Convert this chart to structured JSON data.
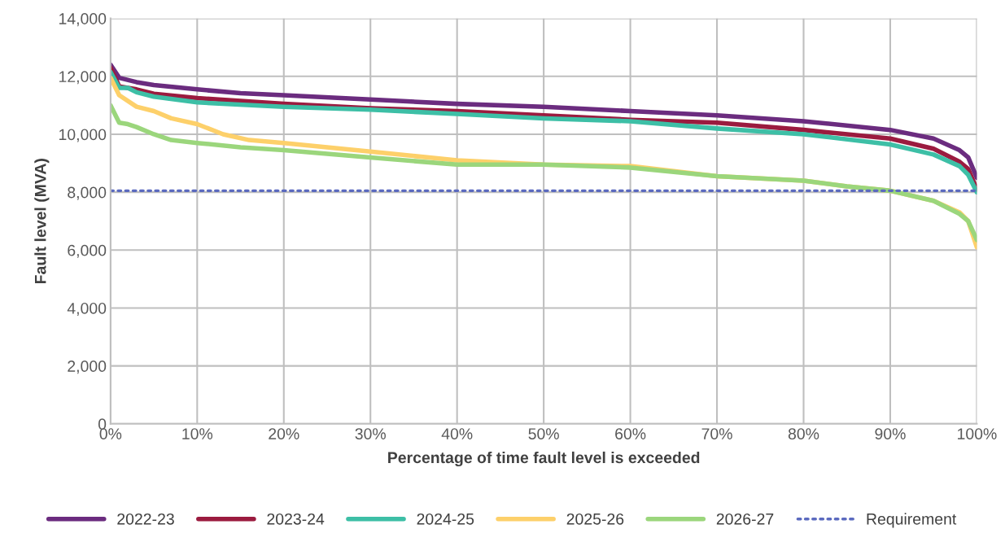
{
  "chart_data": {
    "type": "line",
    "xlabel": "Percentage of time fault level is exceeded",
    "ylabel": "Fault level (MVA)",
    "xlim": [
      0,
      100
    ],
    "xticks": [
      {
        "value": 0,
        "label": "0%"
      },
      {
        "value": 10,
        "label": "10%"
      },
      {
        "value": 20,
        "label": "20%"
      },
      {
        "value": 30,
        "label": "30%"
      },
      {
        "value": 40,
        "label": "40%"
      },
      {
        "value": 50,
        "label": "50%"
      },
      {
        "value": 60,
        "label": "60%"
      },
      {
        "value": 70,
        "label": "70%"
      },
      {
        "value": 80,
        "label": "80%"
      },
      {
        "value": 90,
        "label": "90%"
      },
      {
        "value": 100,
        "label": "100%"
      }
    ],
    "ylim": [
      0,
      14000
    ],
    "yticks": [
      {
        "value": 0,
        "label": "0"
      },
      {
        "value": 2000,
        "label": "2,000"
      },
      {
        "value": 4000,
        "label": "4,000"
      },
      {
        "value": 6000,
        "label": "6,000"
      },
      {
        "value": 8000,
        "label": "8,000"
      },
      {
        "value": 10000,
        "label": "10,000"
      },
      {
        "value": 12000,
        "label": "12,000"
      },
      {
        "value": 14000,
        "label": "14,000"
      }
    ],
    "grid": true,
    "legend": "bottom",
    "series": [
      {
        "name": "2022-23",
        "color": "#6b2c7f",
        "x": [
          0,
          1,
          3,
          5,
          10,
          15,
          20,
          30,
          40,
          50,
          60,
          70,
          80,
          90,
          95,
          98,
          99,
          100
        ],
        "values": [
          12400,
          11950,
          11800,
          11700,
          11550,
          11420,
          11350,
          11200,
          11050,
          10950,
          10800,
          10650,
          10450,
          10150,
          9850,
          9450,
          9200,
          8500
        ]
      },
      {
        "name": "2023-24",
        "color": "#9b1b3f",
        "x": [
          0,
          1,
          3,
          5,
          10,
          20,
          30,
          40,
          50,
          60,
          70,
          80,
          90,
          95,
          98,
          99,
          100
        ],
        "values": [
          12300,
          11650,
          11550,
          11400,
          11250,
          11050,
          10900,
          10800,
          10650,
          10500,
          10400,
          10150,
          9850,
          9500,
          9050,
          8800,
          8100
        ]
      },
      {
        "name": "2024-25",
        "color": "#3dbfa6",
        "x": [
          0,
          1,
          2,
          3,
          5,
          10,
          20,
          30,
          40,
          50,
          60,
          70,
          80,
          90,
          95,
          98,
          99,
          100
        ],
        "values": [
          12150,
          11600,
          11600,
          11450,
          11300,
          11100,
          10950,
          10850,
          10700,
          10550,
          10450,
          10200,
          10000,
          9650,
          9300,
          8900,
          8600,
          8000
        ]
      },
      {
        "name": "2025-26",
        "color": "#fdd06a",
        "x": [
          0,
          1,
          3,
          5,
          7,
          10,
          13,
          16,
          20,
          30,
          40,
          50,
          60,
          70,
          80,
          85,
          90,
          95,
          98,
          99,
          100
        ],
        "values": [
          11950,
          11350,
          10950,
          10800,
          10550,
          10350,
          10000,
          9800,
          9700,
          9400,
          9100,
          8950,
          8900,
          8550,
          8400,
          8200,
          8050,
          7700,
          7300,
          7000,
          6100
        ]
      },
      {
        "name": "2026-27",
        "color": "#9bd67c",
        "x": [
          0,
          1,
          2,
          3,
          5,
          7,
          10,
          15,
          20,
          30,
          40,
          50,
          60,
          70,
          80,
          85,
          90,
          95,
          98,
          99,
          100
        ],
        "values": [
          11000,
          10400,
          10350,
          10250,
          10000,
          9800,
          9700,
          9550,
          9450,
          9200,
          8950,
          8950,
          8850,
          8550,
          8400,
          8200,
          8050,
          7700,
          7250,
          7000,
          6350
        ]
      },
      {
        "name": "Requirement",
        "color": "#5b6abf",
        "line_style": "dotted",
        "x": [
          0,
          100
        ],
        "values": [
          8050,
          8050
        ]
      }
    ]
  }
}
